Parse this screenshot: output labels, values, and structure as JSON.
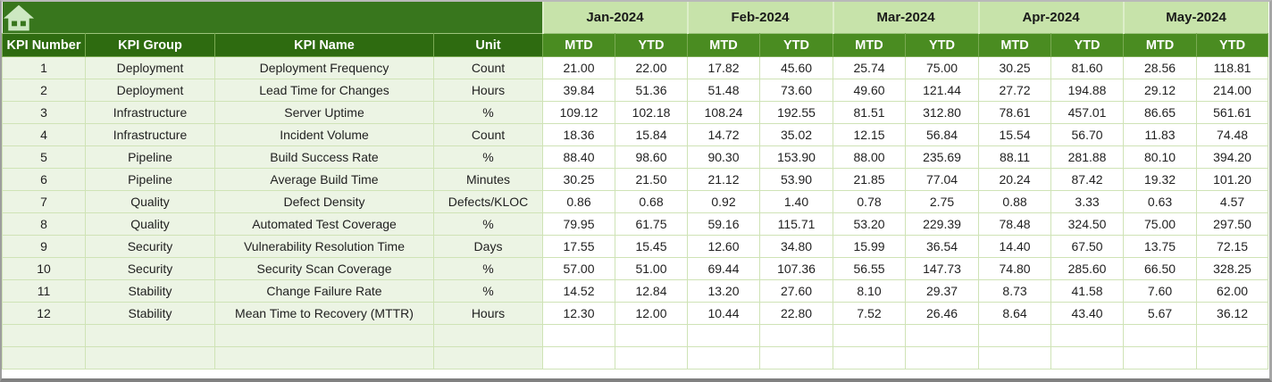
{
  "header": {
    "left_columns": [
      "KPI Number",
      "KPI Group",
      "KPI Name",
      "Unit"
    ],
    "months": [
      "Jan-2024",
      "Feb-2024",
      "Mar-2024",
      "Apr-2024",
      "May-2024"
    ],
    "sub_columns": [
      "MTD",
      "YTD"
    ]
  },
  "icons": {
    "home": "home-icon"
  },
  "colors": {
    "banner_green": "#38761D",
    "left_header_green": "#2E6B10",
    "subheader_green": "#4A8C21",
    "month_light_green": "#C7E3AA",
    "row_tint_green": "#ECF4E4",
    "grid_line_green": "#CFE3B6",
    "home_icon_fill": "#CDE8C2",
    "frame_gray": "#808080"
  },
  "table": {
    "empty_row_count": 2,
    "rows": [
      {
        "kpi_number": "1",
        "kpi_group": "Deployment",
        "kpi_name": "Deployment Frequency",
        "unit": "Count",
        "values": [
          "21.00",
          "22.00",
          "17.82",
          "45.60",
          "25.74",
          "75.00",
          "30.25",
          "81.60",
          "28.56",
          "118.81"
        ]
      },
      {
        "kpi_number": "2",
        "kpi_group": "Deployment",
        "kpi_name": "Lead Time for Changes",
        "unit": "Hours",
        "values": [
          "39.84",
          "51.36",
          "51.48",
          "73.60",
          "49.60",
          "121.44",
          "27.72",
          "194.88",
          "29.12",
          "214.00"
        ]
      },
      {
        "kpi_number": "3",
        "kpi_group": "Infrastructure",
        "kpi_name": "Server Uptime",
        "unit": "%",
        "values": [
          "109.12",
          "102.18",
          "108.24",
          "192.55",
          "81.51",
          "312.80",
          "78.61",
          "457.01",
          "86.65",
          "561.61"
        ]
      },
      {
        "kpi_number": "4",
        "kpi_group": "Infrastructure",
        "kpi_name": "Incident Volume",
        "unit": "Count",
        "values": [
          "18.36",
          "15.84",
          "14.72",
          "35.02",
          "12.15",
          "56.84",
          "15.54",
          "56.70",
          "11.83",
          "74.48"
        ]
      },
      {
        "kpi_number": "5",
        "kpi_group": "Pipeline",
        "kpi_name": "Build Success Rate",
        "unit": "%",
        "values": [
          "88.40",
          "98.60",
          "90.30",
          "153.90",
          "88.00",
          "235.69",
          "88.11",
          "281.88",
          "80.10",
          "394.20"
        ]
      },
      {
        "kpi_number": "6",
        "kpi_group": "Pipeline",
        "kpi_name": "Average Build Time",
        "unit": "Minutes",
        "values": [
          "30.25",
          "21.50",
          "21.12",
          "53.90",
          "21.85",
          "77.04",
          "20.24",
          "87.42",
          "19.32",
          "101.20"
        ]
      },
      {
        "kpi_number": "7",
        "kpi_group": "Quality",
        "kpi_name": "Defect Density",
        "unit": "Defects/KLOC",
        "values": [
          "0.86",
          "0.68",
          "0.92",
          "1.40",
          "0.78",
          "2.75",
          "0.88",
          "3.33",
          "0.63",
          "4.57"
        ]
      },
      {
        "kpi_number": "8",
        "kpi_group": "Quality",
        "kpi_name": "Automated Test Coverage",
        "unit": "%",
        "values": [
          "79.95",
          "61.75",
          "59.16",
          "115.71",
          "53.20",
          "229.39",
          "78.48",
          "324.50",
          "75.00",
          "297.50"
        ]
      },
      {
        "kpi_number": "9",
        "kpi_group": "Security",
        "kpi_name": "Vulnerability Resolution Time",
        "unit": "Days",
        "values": [
          "17.55",
          "15.45",
          "12.60",
          "34.80",
          "15.99",
          "36.54",
          "14.40",
          "67.50",
          "13.75",
          "72.15"
        ]
      },
      {
        "kpi_number": "10",
        "kpi_group": "Security",
        "kpi_name": "Security Scan Coverage",
        "unit": "%",
        "values": [
          "57.00",
          "51.00",
          "69.44",
          "107.36",
          "56.55",
          "147.73",
          "74.80",
          "285.60",
          "66.50",
          "328.25"
        ]
      },
      {
        "kpi_number": "11",
        "kpi_group": "Stability",
        "kpi_name": "Change Failure Rate",
        "unit": "%",
        "values": [
          "14.52",
          "12.84",
          "13.20",
          "27.60",
          "8.10",
          "29.37",
          "8.73",
          "41.58",
          "7.60",
          "62.00"
        ]
      },
      {
        "kpi_number": "12",
        "kpi_group": "Stability",
        "kpi_name": "Mean Time to Recovery (MTTR)",
        "unit": "Hours",
        "values": [
          "12.30",
          "12.00",
          "10.44",
          "22.80",
          "7.52",
          "26.46",
          "8.64",
          "43.40",
          "5.67",
          "36.12"
        ]
      }
    ]
  }
}
